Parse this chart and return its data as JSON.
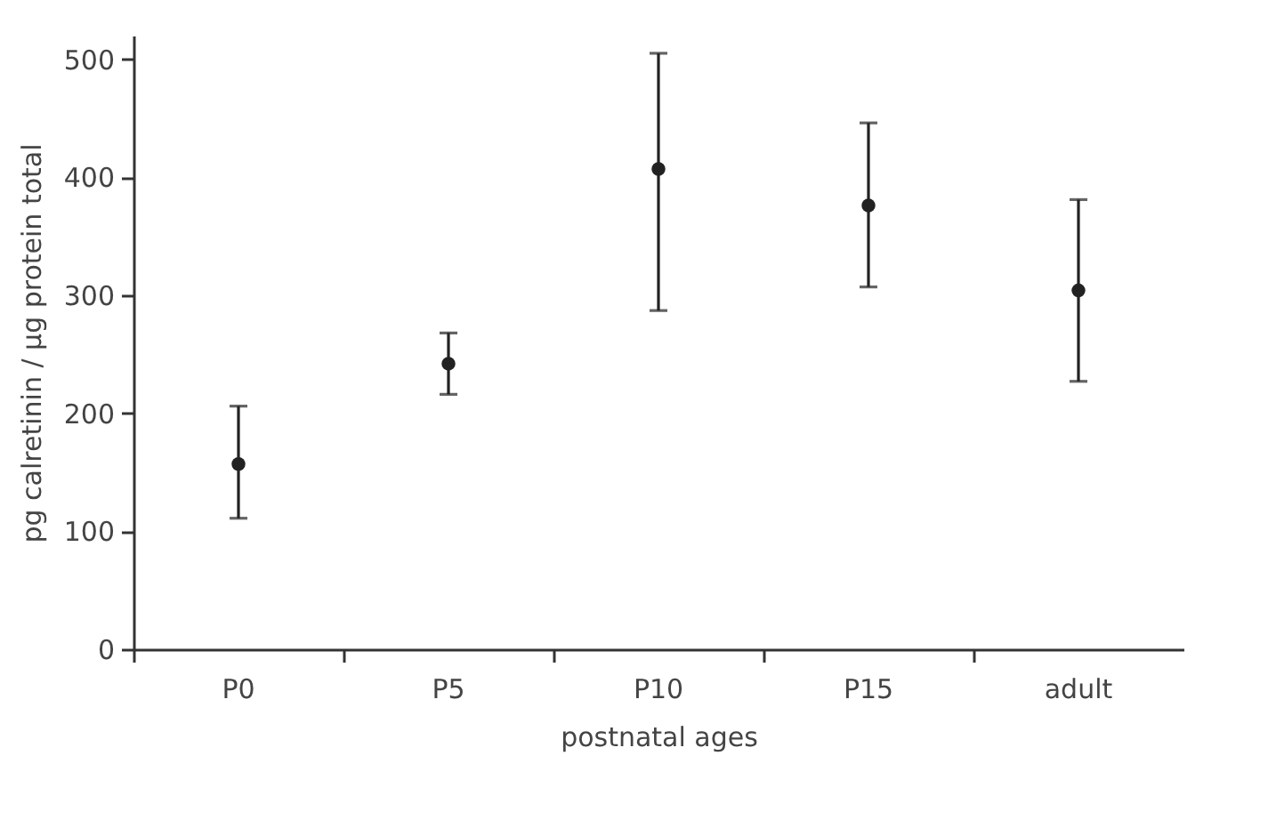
{
  "chart_data": {
    "type": "scatter",
    "xlabel": "postnatal ages",
    "ylabel": "pg calretinin / µg protein total",
    "categories": [
      "P0",
      "P5",
      "P10",
      "P15",
      "adult"
    ],
    "series": [
      {
        "color": "#222222",
        "values": [
          157,
          242,
          407,
          376,
          304
        ],
        "errors": [
          [
            111,
            206
          ],
          [
            216,
            268
          ],
          [
            287,
            505
          ],
          [
            307,
            446
          ],
          [
            227,
            381
          ]
        ]
      }
    ],
    "ylim": [
      0,
      520
    ],
    "yticks": [
      0,
      100,
      200,
      300,
      400,
      500
    ],
    "grid": false,
    "marker": "circle"
  }
}
